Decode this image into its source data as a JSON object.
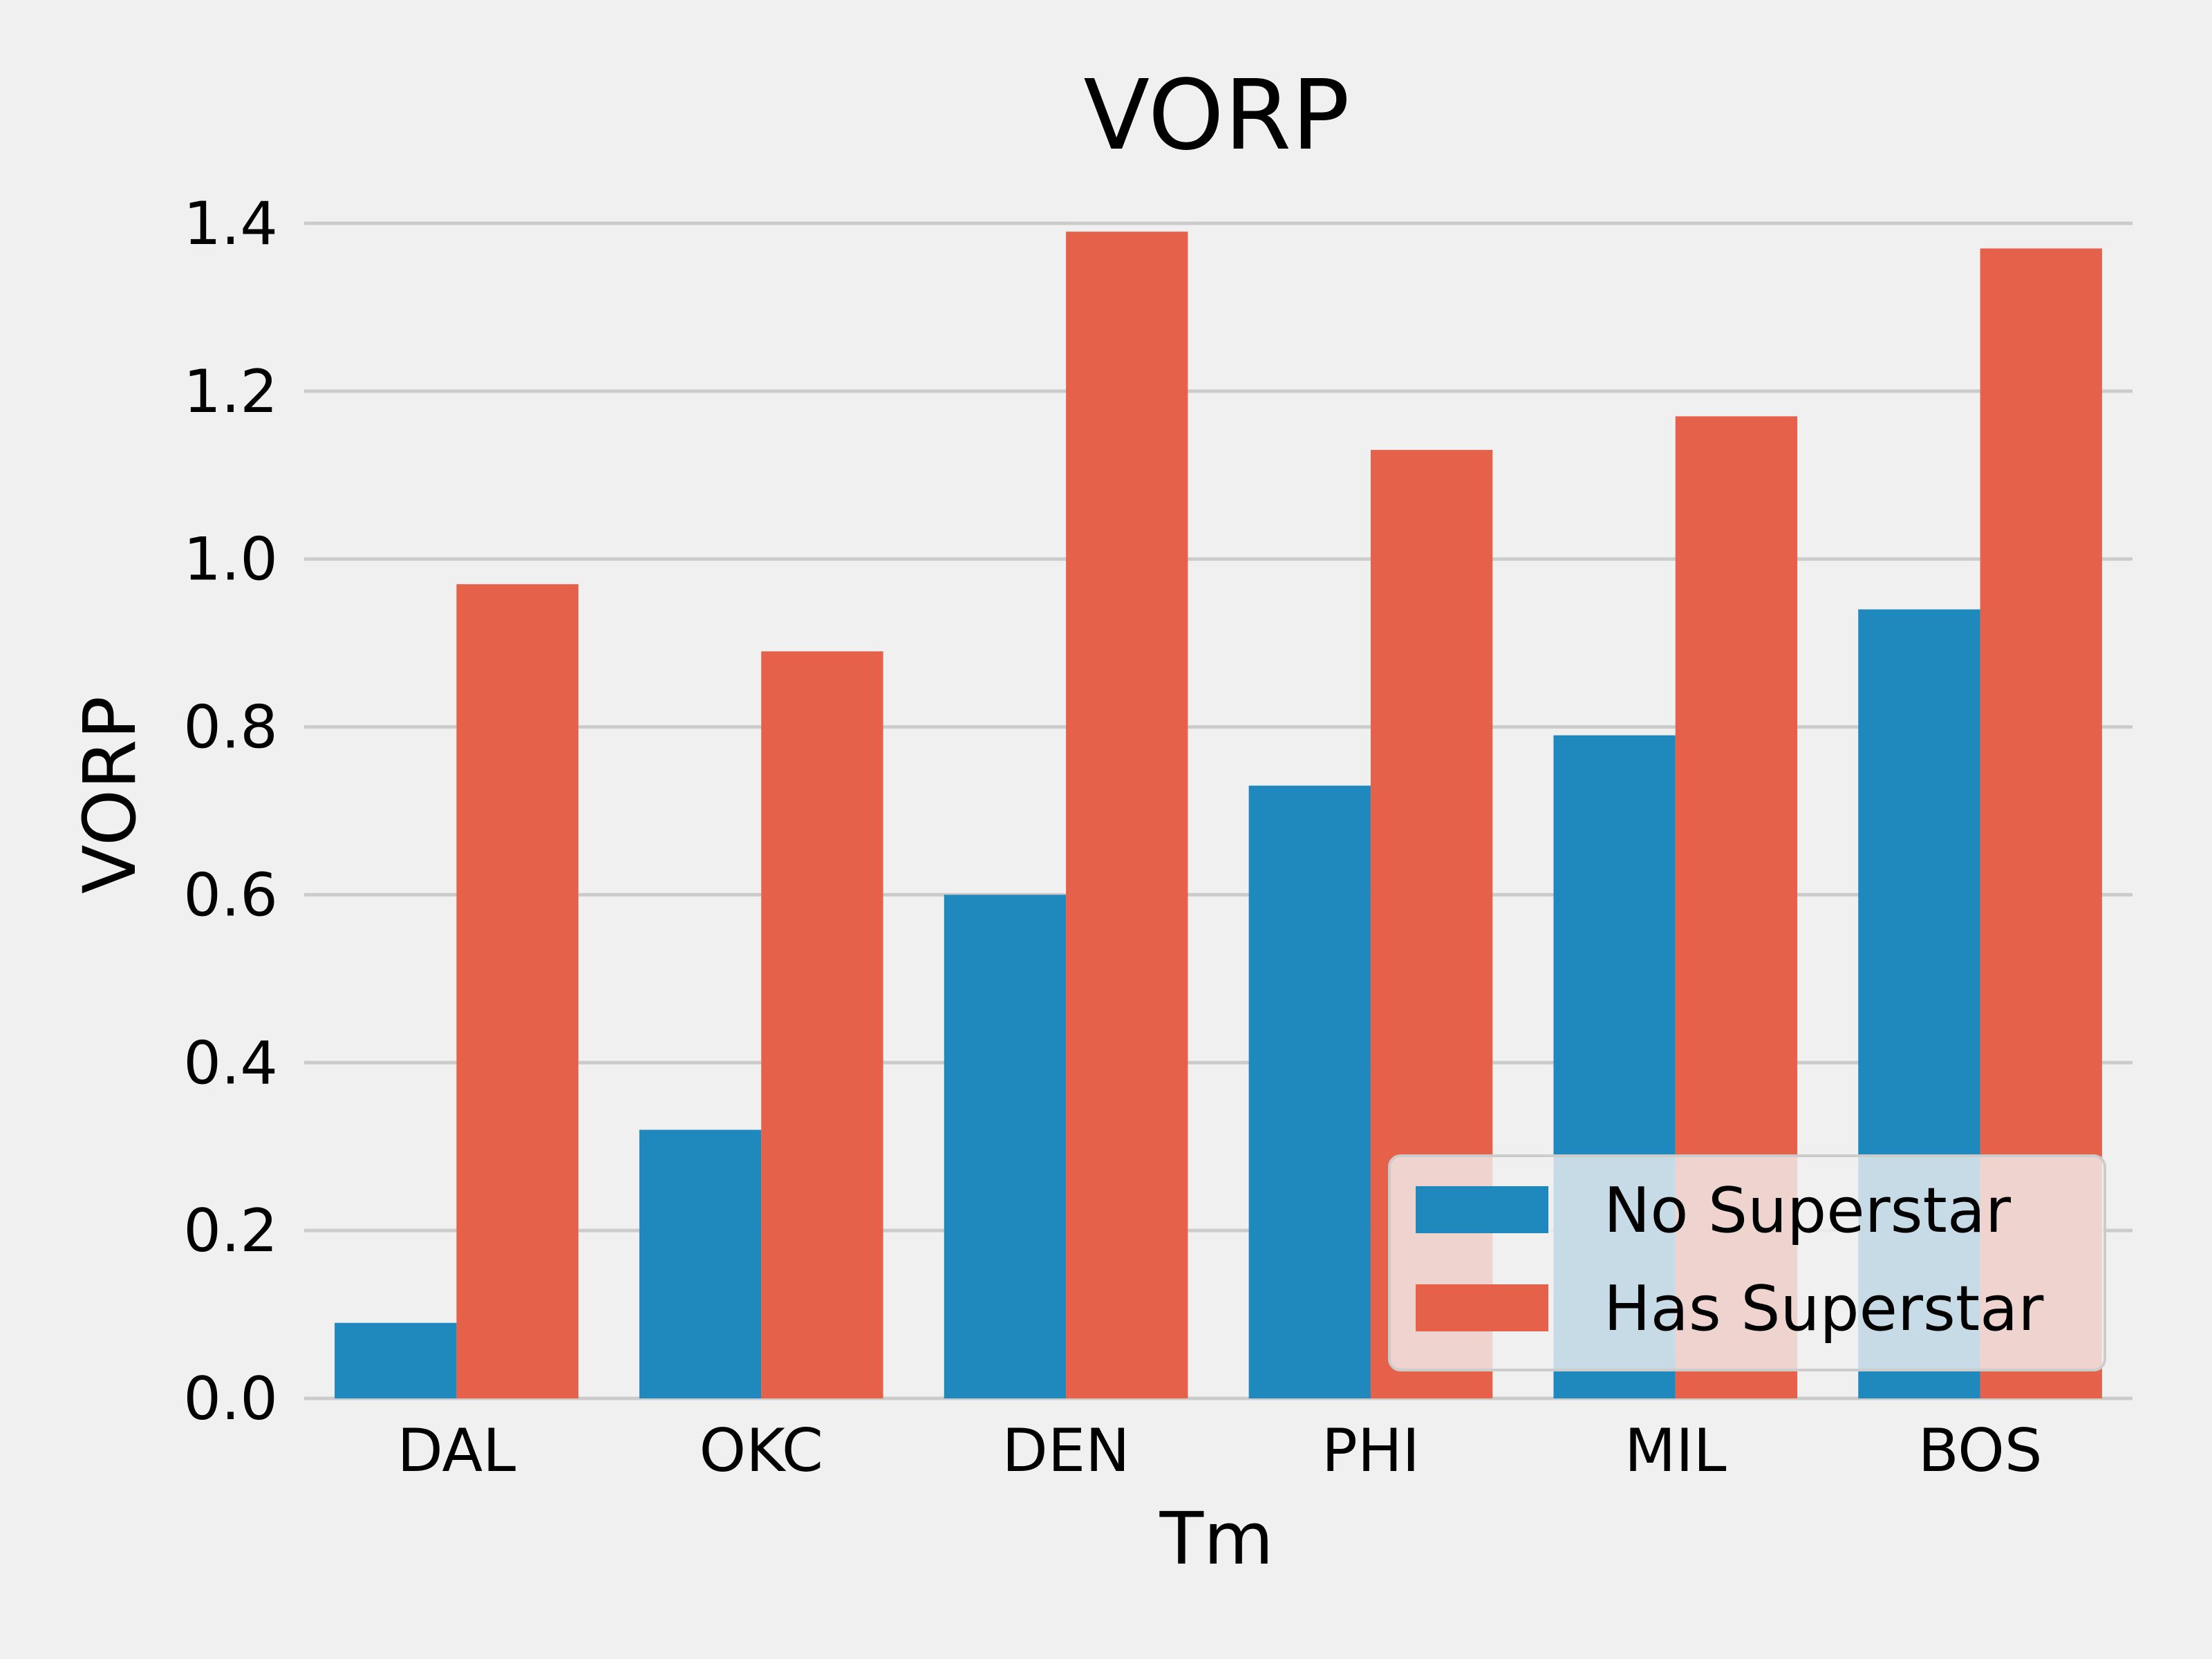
{
  "chart_data": {
    "type": "bar",
    "title": "VORP",
    "xlabel": "Tm",
    "ylabel": "VORP",
    "categories": [
      "DAL",
      "OKC",
      "DEN",
      "PHI",
      "MIL",
      "BOS"
    ],
    "series": [
      {
        "name": "No Superstar",
        "color": "#1f88bc",
        "values": [
          0.09,
          0.32,
          0.6,
          0.73,
          0.79,
          0.94
        ]
      },
      {
        "name": "Has Superstar",
        "color": "#e5614a",
        "values": [
          0.97,
          0.89,
          1.39,
          1.13,
          1.17,
          1.37
        ]
      }
    ],
    "ylim": [
      0,
      1.4
    ],
    "yticks": [
      "0.0",
      "0.2",
      "0.4",
      "0.6",
      "0.8",
      "1.0",
      "1.2",
      "1.4"
    ],
    "grid": "horizontal",
    "legend_position": "lower-right"
  }
}
